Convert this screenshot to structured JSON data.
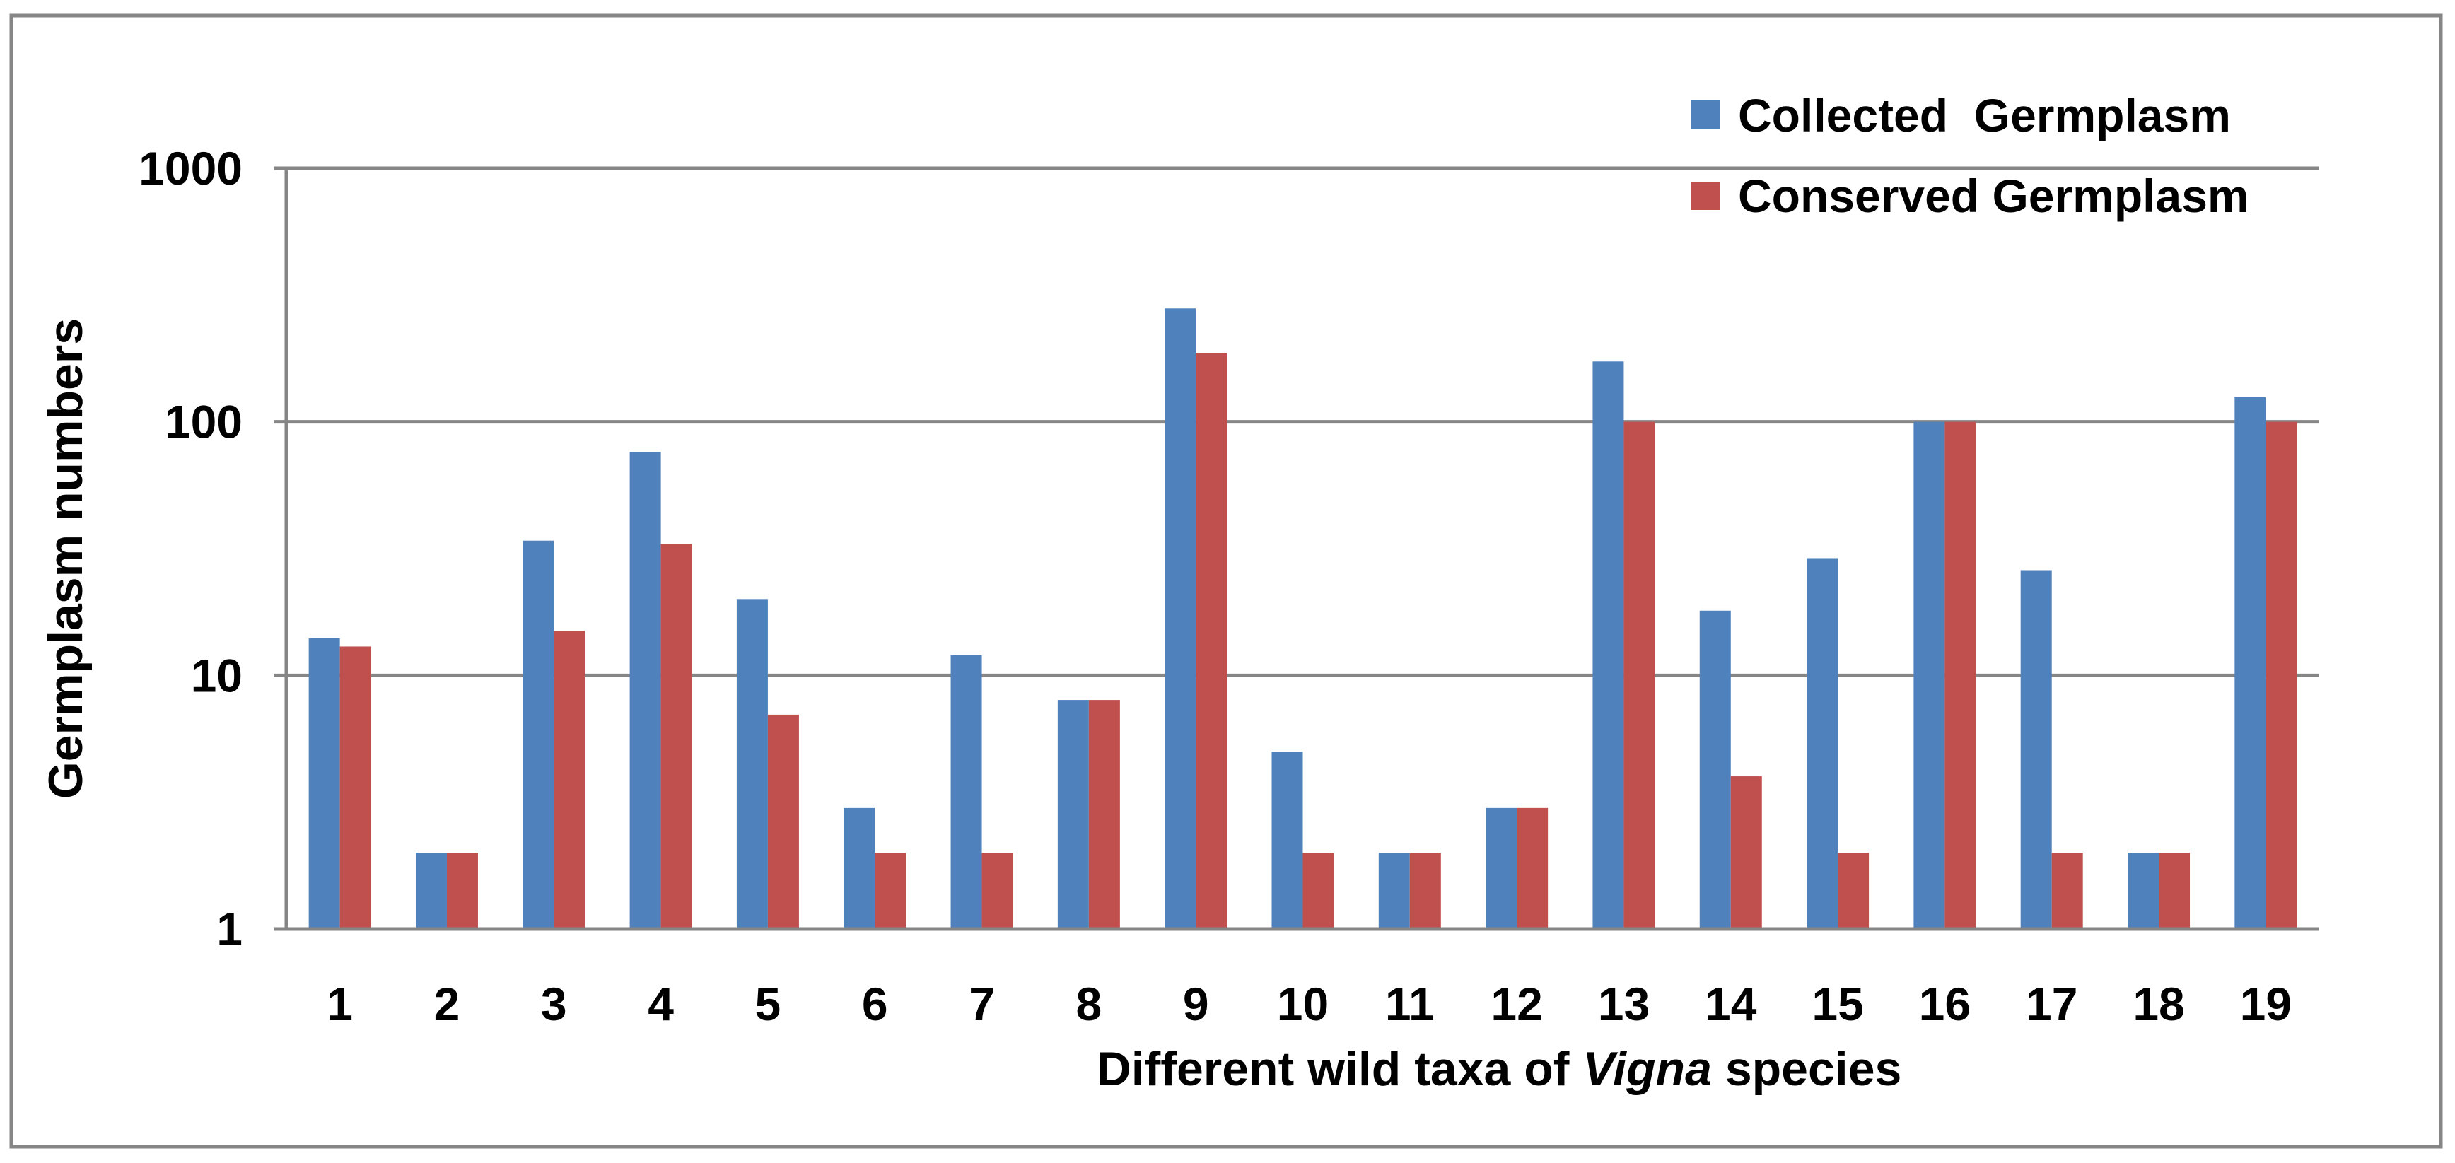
{
  "chart_data": {
    "type": "bar",
    "scale": "log",
    "title": "",
    "xlabel_prefix": "Different wild taxa of ",
    "xlabel_italic": "Vigna",
    "xlabel_suffix": " species",
    "ylabel": "Germplasm numbers",
    "ylim": [
      1,
      1000
    ],
    "yticks": [
      1,
      10,
      100,
      1000
    ],
    "ytick_labels": [
      "1",
      "10",
      "100",
      "1000"
    ],
    "categories": [
      "1",
      "2",
      "3",
      "4",
      "5",
      "6",
      "7",
      "8",
      "9",
      "10",
      "11",
      "12",
      "13",
      "14",
      "15",
      "16",
      "17",
      "18",
      "19"
    ],
    "series": [
      {
        "name": "Collected  Germplasm",
        "color": "#4F81BD",
        "values": [
          14,
          2,
          34,
          76,
          20,
          3,
          12,
          8,
          280,
          5,
          2,
          3,
          173,
          18,
          29,
          100,
          26,
          2,
          125
        ]
      },
      {
        "name": "Conserved Germplasm",
        "color": "#C0504D",
        "values": [
          13,
          2,
          15,
          33,
          7,
          2,
          2,
          8,
          187,
          2,
          2,
          3,
          100,
          4,
          2,
          100,
          2,
          2,
          100
        ]
      }
    ],
    "grid": true,
    "legend_position": "top-right",
    "gridline_color": "#868686",
    "axis_color": "#868686"
  }
}
